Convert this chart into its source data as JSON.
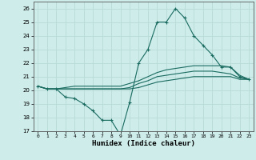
{
  "xlabel": "Humidex (Indice chaleur)",
  "xlim": [
    -0.5,
    23.5
  ],
  "ylim": [
    17,
    26.5
  ],
  "yticks": [
    17,
    18,
    19,
    20,
    21,
    22,
    23,
    24,
    25,
    26
  ],
  "xticks": [
    0,
    1,
    2,
    3,
    4,
    5,
    6,
    7,
    8,
    9,
    10,
    11,
    12,
    13,
    14,
    15,
    16,
    17,
    18,
    19,
    20,
    21,
    22,
    23
  ],
  "bg_color": "#cdecea",
  "grid_color": "#b8dbd8",
  "line_color": "#1a6b60",
  "series": [
    {
      "x": [
        0,
        1,
        2,
        3,
        4,
        5,
        6,
        7,
        8,
        9,
        10,
        11,
        12,
        13,
        14,
        15,
        16,
        17,
        18,
        19,
        20,
        21,
        22,
        23
      ],
      "y": [
        20.3,
        20.1,
        20.1,
        19.5,
        19.4,
        19.0,
        18.5,
        17.8,
        17.8,
        16.7,
        19.1,
        22.0,
        23.0,
        25.0,
        25.0,
        26.0,
        25.3,
        24.0,
        23.3,
        22.6,
        21.7,
        21.7,
        21.0,
        20.8
      ],
      "marker": true
    },
    {
      "x": [
        0,
        1,
        2,
        3,
        4,
        5,
        6,
        7,
        8,
        9,
        10,
        11,
        12,
        13,
        14,
        15,
        16,
        17,
        18,
        19,
        20,
        21,
        22,
        23
      ],
      "y": [
        20.3,
        20.1,
        20.1,
        20.2,
        20.3,
        20.3,
        20.3,
        20.3,
        20.3,
        20.3,
        20.5,
        20.7,
        21.0,
        21.3,
        21.5,
        21.6,
        21.7,
        21.8,
        21.8,
        21.8,
        21.8,
        21.7,
        21.1,
        20.8
      ],
      "marker": false
    },
    {
      "x": [
        0,
        1,
        2,
        3,
        4,
        5,
        6,
        7,
        8,
        9,
        10,
        11,
        12,
        13,
        14,
        15,
        16,
        17,
        18,
        19,
        20,
        21,
        22,
        23
      ],
      "y": [
        20.3,
        20.1,
        20.1,
        20.1,
        20.1,
        20.1,
        20.1,
        20.1,
        20.1,
        20.1,
        20.2,
        20.5,
        20.7,
        21.0,
        21.1,
        21.2,
        21.3,
        21.4,
        21.4,
        21.4,
        21.3,
        21.2,
        20.9,
        20.8
      ],
      "marker": false
    },
    {
      "x": [
        0,
        1,
        2,
        3,
        4,
        5,
        6,
        7,
        8,
        9,
        10,
        11,
        12,
        13,
        14,
        15,
        16,
        17,
        18,
        19,
        20,
        21,
        22,
        23
      ],
      "y": [
        20.3,
        20.1,
        20.1,
        20.1,
        20.1,
        20.1,
        20.1,
        20.1,
        20.1,
        20.1,
        20.1,
        20.2,
        20.4,
        20.6,
        20.7,
        20.8,
        20.9,
        21.0,
        21.0,
        21.0,
        21.0,
        21.0,
        20.8,
        20.8
      ],
      "marker": false
    }
  ]
}
